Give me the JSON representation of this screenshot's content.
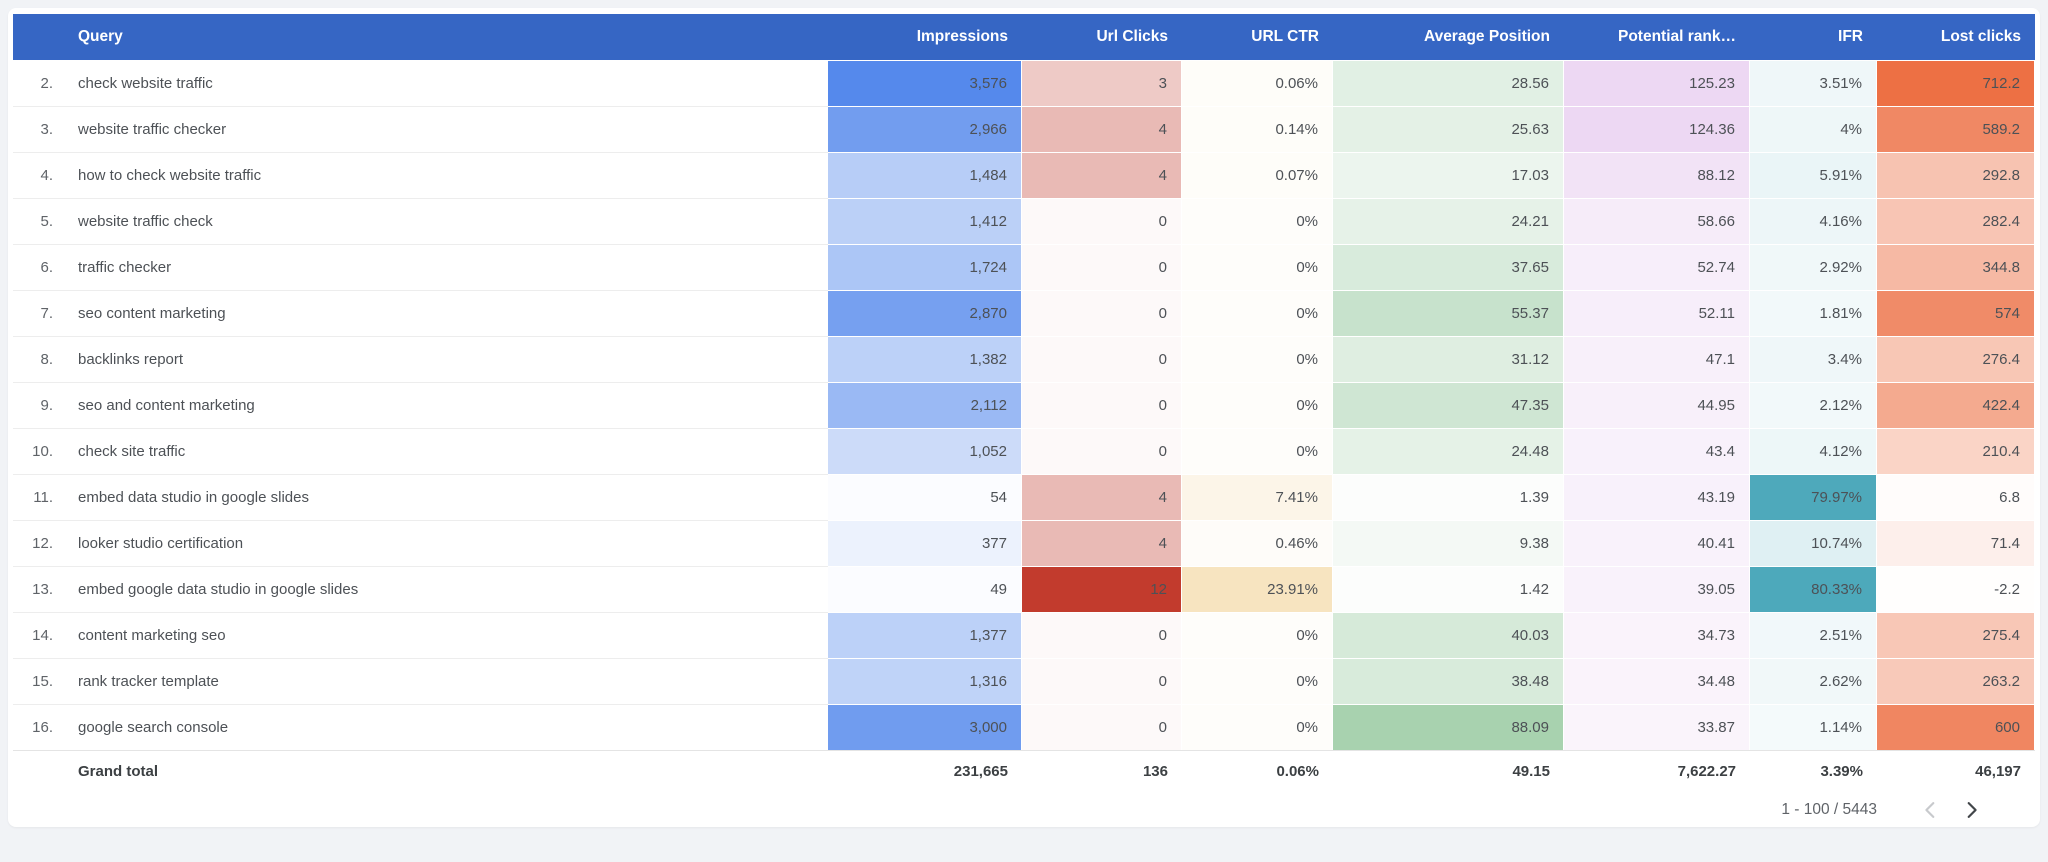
{
  "colors": {
    "page_bg": "#f1f3f6",
    "card_bg": "#ffffff",
    "header_bg": "#3666c4",
    "header_text": "#ffffff",
    "cell_text": "#4d5156",
    "row_number_text": "#5f6368",
    "grand_total_text": "#3c4043",
    "divider": "#ededed",
    "pager_prev_icon": "#c8cacd",
    "pager_next_icon": "#42464a"
  },
  "table": {
    "columns": [
      {
        "key": "query",
        "label": "Query"
      },
      {
        "key": "impressions",
        "label": "Impressions",
        "heat": {
          "base": "#5589ec",
          "max": 3576,
          "floor": 0.01
        }
      },
      {
        "key": "url_clicks",
        "label": "Url Clicks",
        "heat": {
          "base": "#c23b2d",
          "max": 12,
          "floor": 0.03
        }
      },
      {
        "key": "url_ctr",
        "label": "URL CTR",
        "heat": {
          "base": "#e7b34c",
          "max": 72,
          "floor": 0.03
        }
      },
      {
        "key": "avg_position",
        "label": "Average Position",
        "heat": {
          "base": "#9ccca4",
          "max": 100,
          "floor": 0.02
        }
      },
      {
        "key": "potential_rank",
        "label": "Potential rank…",
        "heat": {
          "base": "#edd8f3",
          "max": 125.23,
          "floor": 0.03
        }
      },
      {
        "key": "ifr",
        "label": "IFR",
        "heat": {
          "base": "#4da9bb",
          "max": 80.33,
          "floor": 0.05
        }
      },
      {
        "key": "lost_clicks",
        "label": "Lost clicks",
        "heat": {
          "base": "#ed7044",
          "max": 712.2,
          "floor": 0.01
        }
      }
    ],
    "rows": [
      {
        "num": "2.",
        "query": "check website traffic",
        "impressions": "3,576",
        "url_clicks": "3",
        "url_ctr": "0.06%",
        "avg_position": "28.56",
        "potential_rank": "125.23",
        "ifr": "3.51%",
        "lost_clicks": "712.2"
      },
      {
        "num": "3.",
        "query": "website traffic checker",
        "impressions": "2,966",
        "url_clicks": "4",
        "url_ctr": "0.14%",
        "avg_position": "25.63",
        "potential_rank": "124.36",
        "ifr": "4%",
        "lost_clicks": "589.2"
      },
      {
        "num": "4.",
        "query": "how to check website traffic",
        "impressions": "1,484",
        "url_clicks": "4",
        "url_ctr": "0.07%",
        "avg_position": "17.03",
        "potential_rank": "88.12",
        "ifr": "5.91%",
        "lost_clicks": "292.8"
      },
      {
        "num": "5.",
        "query": "website traffic check",
        "impressions": "1,412",
        "url_clicks": "0",
        "url_ctr": "0%",
        "avg_position": "24.21",
        "potential_rank": "58.66",
        "ifr": "4.16%",
        "lost_clicks": "282.4"
      },
      {
        "num": "6.",
        "query": "traffic checker",
        "impressions": "1,724",
        "url_clicks": "0",
        "url_ctr": "0%",
        "avg_position": "37.65",
        "potential_rank": "52.74",
        "ifr": "2.92%",
        "lost_clicks": "344.8"
      },
      {
        "num": "7.",
        "query": "seo content marketing",
        "impressions": "2,870",
        "url_clicks": "0",
        "url_ctr": "0%",
        "avg_position": "55.37",
        "potential_rank": "52.11",
        "ifr": "1.81%",
        "lost_clicks": "574"
      },
      {
        "num": "8.",
        "query": "backlinks report",
        "impressions": "1,382",
        "url_clicks": "0",
        "url_ctr": "0%",
        "avg_position": "31.12",
        "potential_rank": "47.1",
        "ifr": "3.4%",
        "lost_clicks": "276.4"
      },
      {
        "num": "9.",
        "query": "seo and content marketing",
        "impressions": "2,112",
        "url_clicks": "0",
        "url_ctr": "0%",
        "avg_position": "47.35",
        "potential_rank": "44.95",
        "ifr": "2.12%",
        "lost_clicks": "422.4"
      },
      {
        "num": "10.",
        "query": "check site traffic",
        "impressions": "1,052",
        "url_clicks": "0",
        "url_ctr": "0%",
        "avg_position": "24.48",
        "potential_rank": "43.4",
        "ifr": "4.12%",
        "lost_clicks": "210.4"
      },
      {
        "num": "11.",
        "query": "embed data studio in google slides",
        "impressions": "54",
        "url_clicks": "4",
        "url_ctr": "7.41%",
        "avg_position": "1.39",
        "potential_rank": "43.19",
        "ifr": "79.97%",
        "lost_clicks": "6.8"
      },
      {
        "num": "12.",
        "query": "looker studio certification",
        "impressions": "377",
        "url_clicks": "4",
        "url_ctr": "0.46%",
        "avg_position": "9.38",
        "potential_rank": "40.41",
        "ifr": "10.74%",
        "lost_clicks": "71.4"
      },
      {
        "num": "13.",
        "query": "embed google data studio in google slides",
        "impressions": "49",
        "url_clicks": "12",
        "url_ctr": "23.91%",
        "avg_position": "1.42",
        "potential_rank": "39.05",
        "ifr": "80.33%",
        "lost_clicks": "-2.2"
      },
      {
        "num": "14.",
        "query": "content marketing seo",
        "impressions": "1,377",
        "url_clicks": "0",
        "url_ctr": "0%",
        "avg_position": "40.03",
        "potential_rank": "34.73",
        "ifr": "2.51%",
        "lost_clicks": "275.4"
      },
      {
        "num": "15.",
        "query": "rank tracker template",
        "impressions": "1,316",
        "url_clicks": "0",
        "url_ctr": "0%",
        "avg_position": "38.48",
        "potential_rank": "34.48",
        "ifr": "2.62%",
        "lost_clicks": "263.2"
      },
      {
        "num": "16.",
        "query": "google search console",
        "impressions": "3,000",
        "url_clicks": "0",
        "url_ctr": "0%",
        "avg_position": "88.09",
        "potential_rank": "33.87",
        "ifr": "1.14%",
        "lost_clicks": "600"
      }
    ],
    "grand_total": {
      "label": "Grand total",
      "impressions": "231,665",
      "url_clicks": "136",
      "url_ctr": "0.06%",
      "avg_position": "49.15",
      "potential_rank": "7,622.27",
      "ifr": "3.39%",
      "lost_clicks": "46,197"
    }
  },
  "pagination": {
    "range_label": "1 - 100 / 5443"
  }
}
